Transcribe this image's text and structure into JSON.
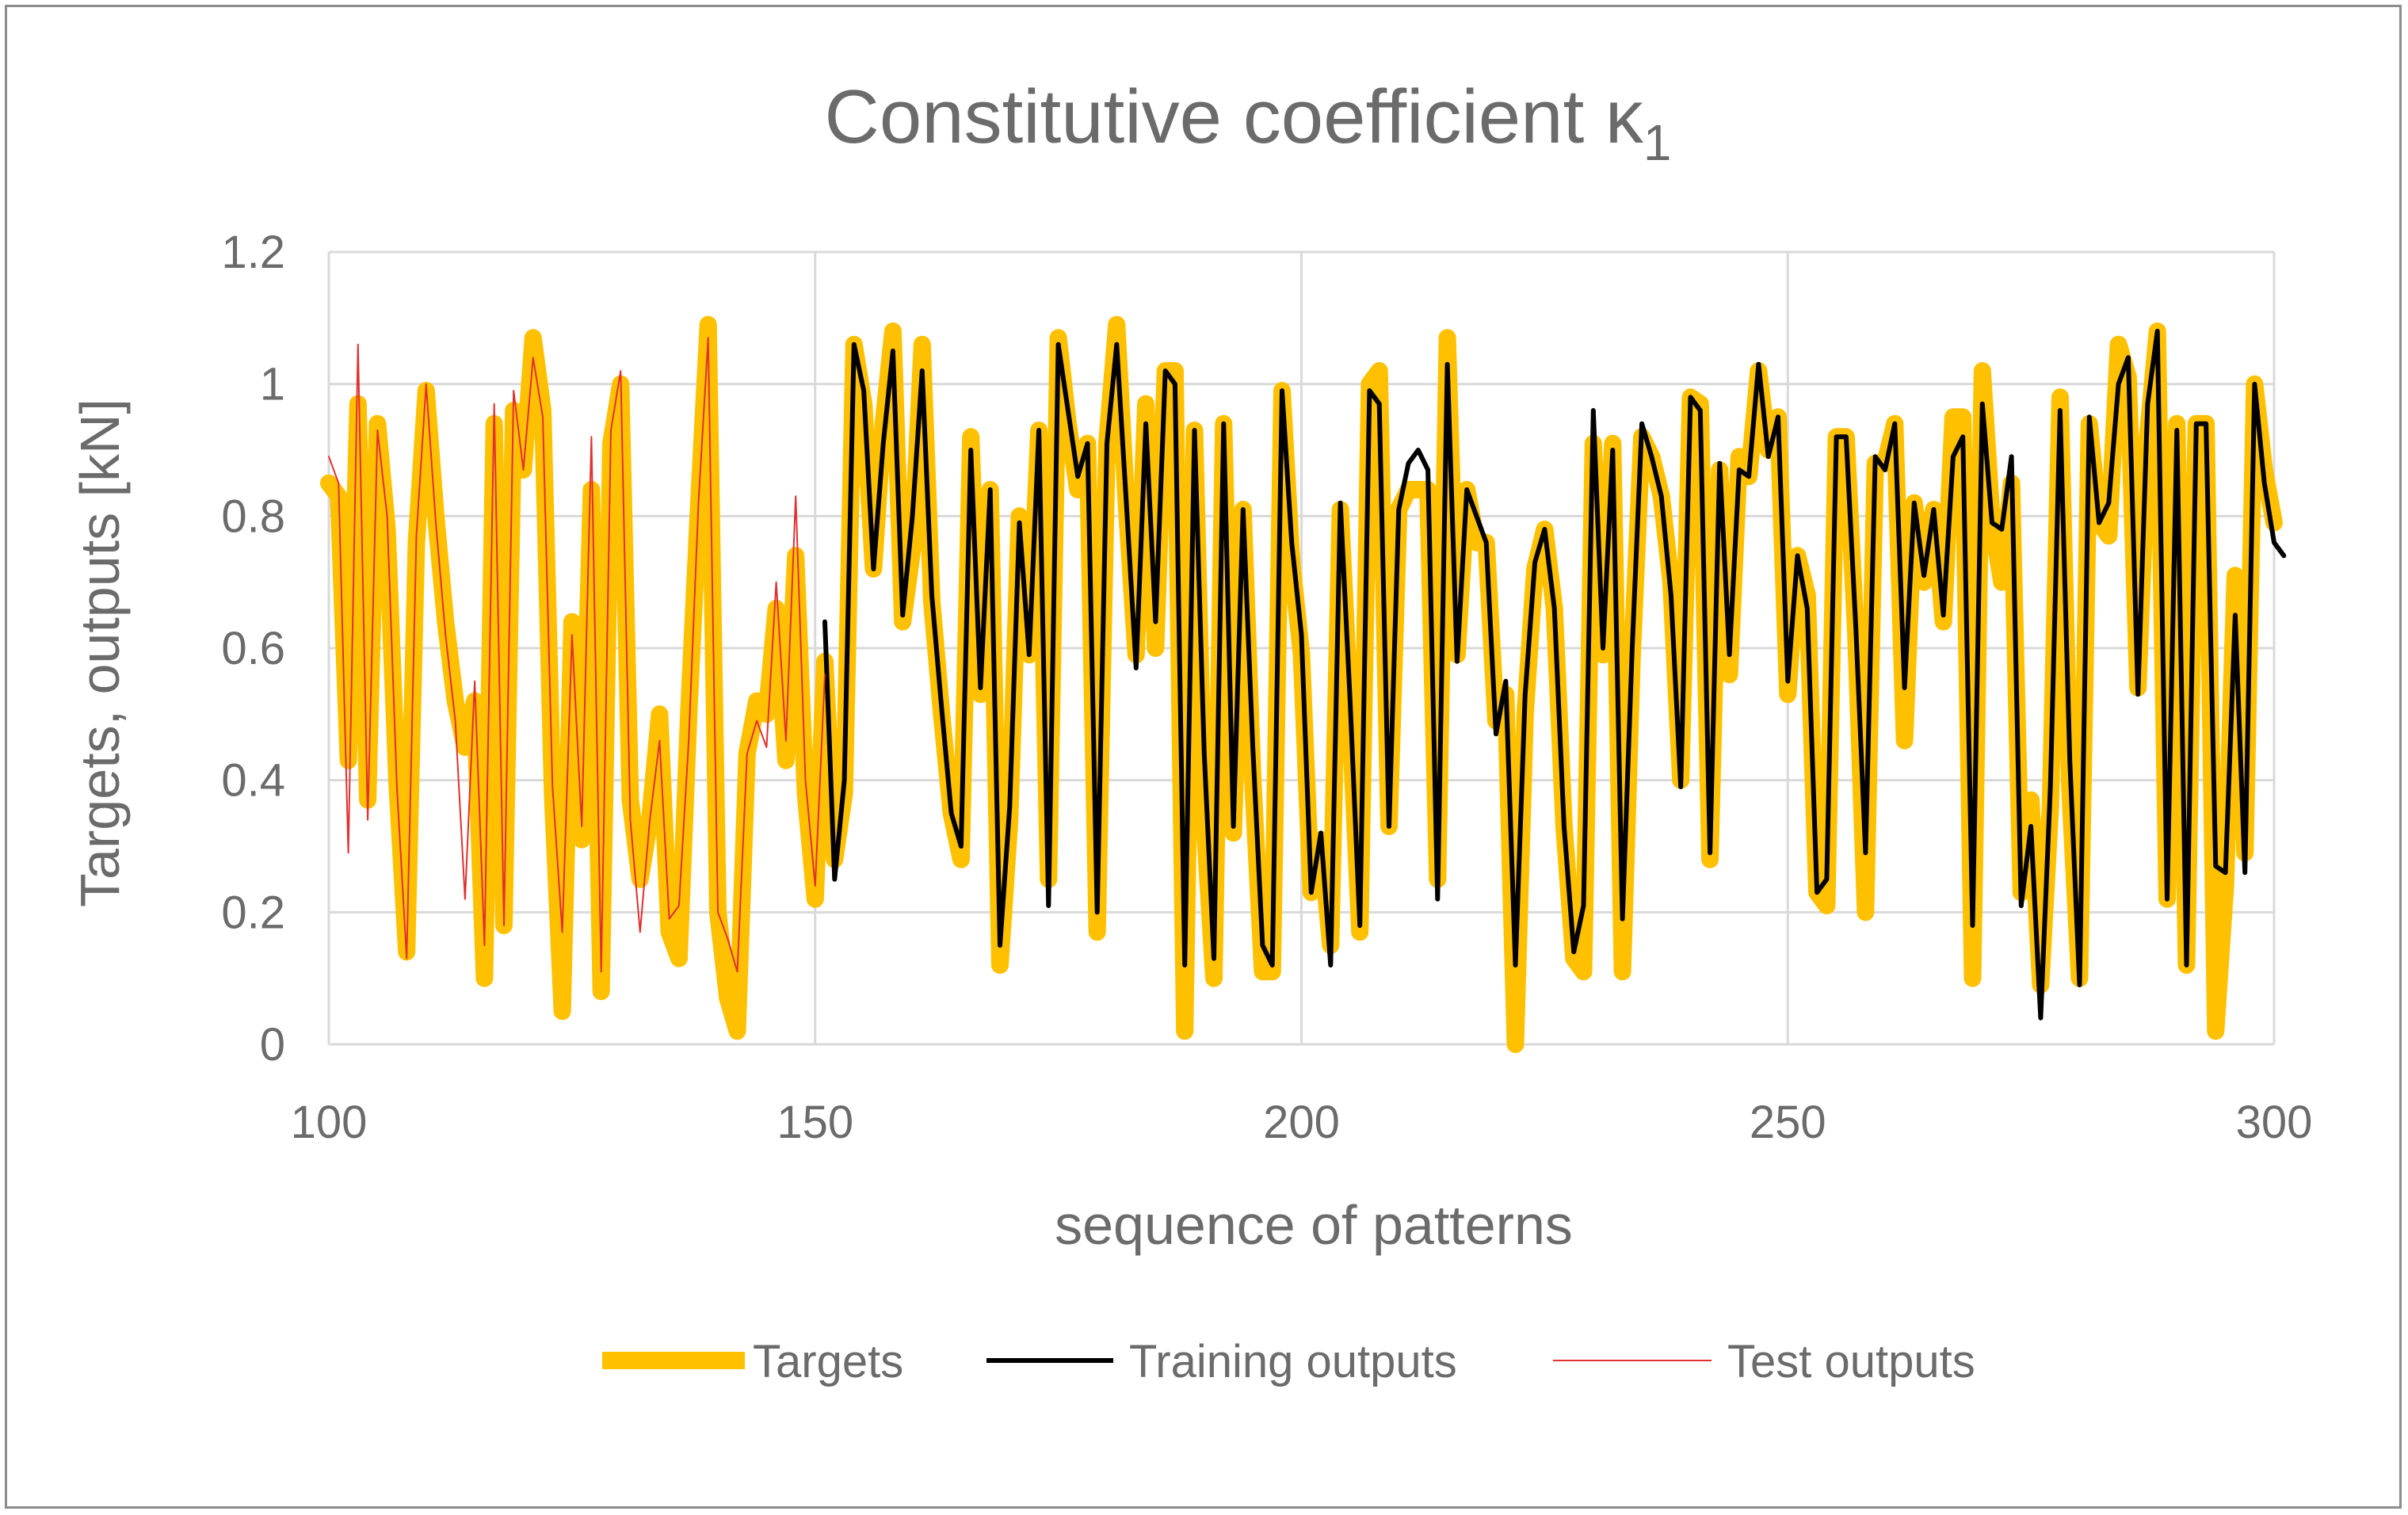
{
  "chart_data": {
    "type": "line",
    "title": "Constitutive coefficient κ",
    "title_subscript": "1",
    "xlabel": "sequence of patterns",
    "ylabel": "Targets, outputs [kN]",
    "xlim": [
      100,
      300
    ],
    "ylim": [
      0,
      1.2
    ],
    "xticks": [
      100,
      150,
      200,
      250,
      300
    ],
    "yticks": [
      0,
      0.2,
      0.4,
      0.6,
      0.8,
      1,
      1.2
    ],
    "xtick_labels": [
      "100",
      "150",
      "200",
      "250",
      "300"
    ],
    "ytick_labels": [
      "0",
      "0.2",
      "0.4",
      "0.6",
      "0.8",
      "1",
      "1.2"
    ],
    "grid": true,
    "legend_position": "bottom",
    "colors": {
      "targets": "#FFC000",
      "training": "#000000",
      "test": "#E03030",
      "grid": "#D9D9D9",
      "text": "#6B6B6B"
    },
    "series": [
      {
        "name": "Targets",
        "x_start": 100,
        "values": [
          0.85,
          0.83,
          0.43,
          0.97,
          0.37,
          0.94,
          0.78,
          0.4,
          0.14,
          0.76,
          0.99,
          0.8,
          0.64,
          0.52,
          0.45,
          0.52,
          0.1,
          0.94,
          0.18,
          0.96,
          0.87,
          1.07,
          0.96,
          0.38,
          0.05,
          0.64,
          0.31,
          0.84,
          0.08,
          0.91,
          1.0,
          0.37,
          0.25,
          0.34,
          0.5,
          0.17,
          0.13,
          0.5,
          0.81,
          1.09,
          0.2,
          0.07,
          0.02,
          0.44,
          0.52,
          0.5,
          0.66,
          0.43,
          0.74,
          0.38,
          0.22,
          0.58,
          0.28,
          0.38,
          1.06,
          0.97,
          0.72,
          0.94,
          1.08,
          0.64,
          0.75,
          1.06,
          0.67,
          0.5,
          0.35,
          0.28,
          0.92,
          0.53,
          0.84,
          0.12,
          0.34,
          0.8,
          0.59,
          0.93,
          0.25,
          1.07,
          0.94,
          0.84,
          0.91,
          0.17,
          0.91,
          1.09,
          0.82,
          0.59,
          0.97,
          0.6,
          1.02,
          1.02,
          0.02,
          0.93,
          0.34,
          0.1,
          0.94,
          0.32,
          0.81,
          0.4,
          0.11,
          0.11,
          0.99,
          0.73,
          0.59,
          0.23,
          0.31,
          0.15,
          0.81,
          0.5,
          0.17,
          1.0,
          1.02,
          0.33,
          0.81,
          0.84,
          0.84,
          0.84,
          0.25,
          1.07,
          0.59,
          0.84,
          0.76,
          0.76,
          0.49,
          0.53,
          0.0,
          0.5,
          0.72,
          0.78,
          0.66,
          0.33,
          0.13,
          0.11,
          0.91,
          0.59,
          0.91,
          0.11,
          0.59,
          0.92,
          0.89,
          0.83,
          0.7,
          0.4,
          0.98,
          0.97,
          0.28,
          0.87,
          0.56,
          0.89,
          0.86,
          1.02,
          0.9,
          0.95,
          0.53,
          0.74,
          0.68,
          0.23,
          0.21,
          0.92,
          0.92,
          0.62,
          0.2,
          0.88,
          0.88,
          0.94,
          0.46,
          0.82,
          0.7,
          0.81,
          0.64,
          0.95,
          0.95,
          0.1,
          1.02,
          0.79,
          0.7,
          0.85,
          0.23,
          0.37,
          0.09,
          0.36,
          0.98,
          0.39,
          0.1,
          0.94,
          0.79,
          0.77,
          1.06,
          1.01,
          0.54,
          0.92,
          1.08,
          0.22,
          0.94,
          0.12,
          0.94,
          0.94,
          0.02,
          0.24,
          0.71,
          0.29,
          1.0,
          0.87,
          0.79
        ]
      },
      {
        "name": "Training outputs",
        "x_start": 151,
        "values": [
          0.64,
          0.25,
          0.4,
          1.06,
          0.99,
          0.72,
          0.91,
          1.05,
          0.65,
          0.8,
          1.02,
          0.68,
          0.51,
          0.35,
          0.3,
          0.9,
          0.54,
          0.84,
          0.15,
          0.36,
          0.79,
          0.59,
          0.93,
          0.21,
          1.06,
          0.96,
          0.86,
          0.91,
          0.2,
          0.91,
          1.06,
          0.82,
          0.57,
          0.94,
          0.64,
          1.02,
          1.0,
          0.12,
          0.93,
          0.44,
          0.13,
          0.94,
          0.33,
          0.81,
          0.45,
          0.15,
          0.12,
          0.99,
          0.76,
          0.62,
          0.23,
          0.32,
          0.12,
          0.82,
          0.52,
          0.18,
          0.99,
          0.97,
          0.33,
          0.81,
          0.88,
          0.9,
          0.87,
          0.22,
          1.03,
          0.58,
          0.84,
          0.8,
          0.76,
          0.47,
          0.55,
          0.12,
          0.53,
          0.73,
          0.78,
          0.66,
          0.33,
          0.14,
          0.21,
          0.96,
          0.6,
          0.9,
          0.19,
          0.6,
          0.94,
          0.89,
          0.83,
          0.68,
          0.39,
          0.98,
          0.96,
          0.29,
          0.88,
          0.59,
          0.87,
          0.86,
          1.03,
          0.89,
          0.95,
          0.55,
          0.74,
          0.66,
          0.23,
          0.25,
          0.92,
          0.92,
          0.63,
          0.29,
          0.89,
          0.87,
          0.94,
          0.54,
          0.82,
          0.71,
          0.81,
          0.65,
          0.89,
          0.92,
          0.18,
          0.97,
          0.79,
          0.78,
          0.89,
          0.21,
          0.33,
          0.04,
          0.39,
          0.96,
          0.43,
          0.09,
          0.95,
          0.79,
          0.82,
          1.0,
          1.04,
          0.53,
          0.97,
          1.08,
          0.22,
          0.93,
          0.12,
          0.94,
          0.94,
          0.27,
          0.26,
          0.65,
          0.26,
          1.0,
          0.85,
          0.76,
          0.74
        ]
      },
      {
        "name": "Test outputs",
        "x_start": 100,
        "values": [
          0.89,
          0.85,
          0.29,
          1.06,
          0.34,
          0.93,
          0.8,
          0.39,
          0.13,
          0.77,
          1.0,
          0.79,
          0.62,
          0.49,
          0.22,
          0.55,
          0.15,
          0.97,
          0.18,
          0.99,
          0.87,
          1.04,
          0.95,
          0.39,
          0.17,
          0.62,
          0.33,
          0.92,
          0.11,
          0.93,
          1.02,
          0.34,
          0.17,
          0.34,
          0.46,
          0.19,
          0.21,
          0.46,
          0.82,
          1.07,
          0.2,
          0.16,
          0.11,
          0.44,
          0.49,
          0.45,
          0.7,
          0.46,
          0.83,
          0.4,
          0.24,
          0.56
        ]
      }
    ]
  }
}
